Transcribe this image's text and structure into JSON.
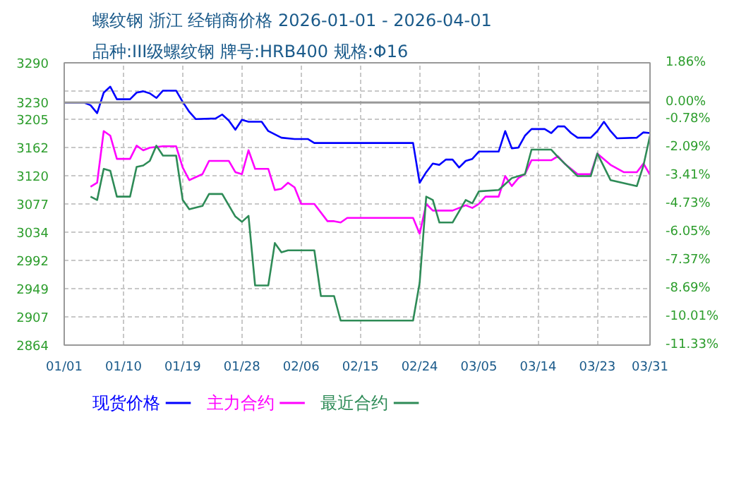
{
  "chart_data": {
    "type": "line",
    "title": "螺纹钢 浙江 经销商价格 2026-01-01 - 2026-04-01",
    "subtitle": "品种:III级螺纹钢 牌号:HRB400 规格:Φ16",
    "xlim": [
      "2026-01-01",
      "2026-03-31"
    ],
    "xticks": [
      {
        "value": "2026-01-01",
        "label": "01/01"
      },
      {
        "value": "2026-01-10",
        "label": "01/10"
      },
      {
        "value": "2026-01-19",
        "label": "01/19"
      },
      {
        "value": "2026-01-28",
        "label": "01/28"
      },
      {
        "value": "2026-02-06",
        "label": "02/06"
      },
      {
        "value": "2026-02-15",
        "label": "02/15"
      },
      {
        "value": "2026-02-24",
        "label": "02/24"
      },
      {
        "value": "2026-03-05",
        "label": "03/05"
      },
      {
        "value": "2026-03-14",
        "label": "03/14"
      },
      {
        "value": "2026-03-23",
        "label": "03/23"
      },
      {
        "value": "2026-03-31",
        "label": "03/31"
      }
    ],
    "ylim": [
      2864,
      3290
    ],
    "yticks": [
      2864,
      2907,
      2949,
      2992,
      3034,
      3077,
      3120,
      3162,
      3205,
      3230,
      {
        "value": 3247,
        "label": null
      },
      3290
    ],
    "y2lim": [
      -11.33,
      1.86
    ],
    "y2ticks": [
      {
        "value": -11.33,
        "label": "-11.33%"
      },
      {
        "value": -10.01,
        "label": "-10.01%"
      },
      {
        "value": -8.69,
        "label": "-8.69%"
      },
      {
        "value": -7.37,
        "label": "-7.37%"
      },
      {
        "value": -6.05,
        "label": "-6.05%"
      },
      {
        "value": -4.73,
        "label": "-4.73%"
      },
      {
        "value": -3.41,
        "label": "-3.41%"
      },
      {
        "value": -2.09,
        "label": "-2.09%"
      },
      {
        "value": -0.78,
        "label": "-0.78%"
      },
      {
        "value": 0,
        "label": "0.00%"
      },
      {
        "value": 1.86,
        "label": "1.86%"
      }
    ],
    "ref_lines": [
      {
        "axis": "y",
        "value": 3230,
        "color": "#999999",
        "line_style": "solid"
      }
    ],
    "grid": true,
    "legend": "bottom",
    "marker": "none",
    "line_style": "solid",
    "series": [
      {
        "name": "现货价格",
        "color": "#0000ff",
        "x": [
          "2026-01-01",
          "2026-01-04",
          "2026-01-05",
          "2026-01-06",
          "2026-01-07",
          "2026-01-08",
          "2026-01-09",
          "2026-01-11",
          "2026-01-12",
          "2026-01-13",
          "2026-01-14",
          "2026-01-15",
          "2026-01-16",
          "2026-01-18",
          "2026-01-19",
          "2026-01-20",
          "2026-01-21",
          "2026-01-24",
          "2026-01-25",
          "2026-01-26",
          "2026-01-27",
          "2026-01-28",
          "2026-01-29",
          "2026-01-31",
          "2026-02-01",
          "2026-02-03",
          "2026-02-05",
          "2026-02-07",
          "2026-02-08",
          "2026-02-23",
          "2026-02-24",
          "2026-02-25",
          "2026-02-26",
          "2026-02-27",
          "2026-02-28",
          "2026-03-01",
          "2026-03-02",
          "2026-03-03",
          "2026-03-04",
          "2026-03-05",
          "2026-03-08",
          "2026-03-09",
          "2026-03-10",
          "2026-03-11",
          "2026-03-12",
          "2026-03-13",
          "2026-03-15",
          "2026-03-16",
          "2026-03-17",
          "2026-03-18",
          "2026-03-19",
          "2026-03-20",
          "2026-03-22",
          "2026-03-23",
          "2026-03-24",
          "2026-03-25",
          "2026-03-26",
          "2026-03-29",
          "2026-03-30",
          "2026-03-31"
        ],
        "values": [
          3230,
          3230,
          3226,
          3214,
          3245,
          3254,
          3235,
          3235,
          3245,
          3247,
          3244,
          3237,
          3248,
          3248,
          3231,
          3216,
          3205,
          3206,
          3212,
          3203,
          3189,
          3204,
          3201,
          3201,
          3187,
          3177,
          3175,
          3175,
          3169,
          3169,
          3109,
          3125,
          3138,
          3136,
          3144,
          3144,
          3132,
          3142,
          3145,
          3156,
          3156,
          3187,
          3161,
          3162,
          3180,
          3190,
          3190,
          3184,
          3194,
          3194,
          3184,
          3177,
          3177,
          3187,
          3201,
          3187,
          3176,
          3177,
          3185,
          3184
        ]
      },
      {
        "name": "主力合约",
        "color": "#ff00ff",
        "x": [
          "2026-01-05",
          "2026-01-06",
          "2026-01-07",
          "2026-01-08",
          "2026-01-09",
          "2026-01-11",
          "2026-01-12",
          "2026-01-13",
          "2026-01-14",
          "2026-01-16",
          "2026-01-18",
          "2026-01-19",
          "2026-01-20",
          "2026-01-22",
          "2026-01-23",
          "2026-01-26",
          "2026-01-27",
          "2026-01-28",
          "2026-01-29",
          "2026-01-30",
          "2026-02-01",
          "2026-02-02",
          "2026-02-03",
          "2026-02-04",
          "2026-02-05",
          "2026-02-06",
          "2026-02-08",
          "2026-02-10",
          "2026-02-11",
          "2026-02-12",
          "2026-02-13",
          "2026-02-23",
          "2026-02-24",
          "2026-02-25",
          "2026-02-26",
          "2026-03-01",
          "2026-03-03",
          "2026-03-04",
          "2026-03-05",
          "2026-03-06",
          "2026-03-08",
          "2026-03-09",
          "2026-03-10",
          "2026-03-11",
          "2026-03-12",
          "2026-03-13",
          "2026-03-16",
          "2026-03-17",
          "2026-03-18",
          "2026-03-20",
          "2026-03-22",
          "2026-03-23",
          "2026-03-25",
          "2026-03-27",
          "2026-03-29",
          "2026-03-30",
          "2026-03-31"
        ],
        "values": [
          3103,
          3109,
          3187,
          3180,
          3145,
          3145,
          3165,
          3158,
          3162,
          3164,
          3164,
          3132,
          3113,
          3122,
          3142,
          3142,
          3125,
          3122,
          3158,
          3130,
          3130,
          3098,
          3100,
          3109,
          3102,
          3077,
          3077,
          3051,
          3051,
          3049,
          3056,
          3056,
          3032,
          3077,
          3067,
          3067,
          3075,
          3071,
          3077,
          3088,
          3088,
          3119,
          3104,
          3116,
          3122,
          3143,
          3143,
          3149,
          3138,
          3122,
          3122,
          3153,
          3136,
          3125,
          3125,
          3138,
          3121
        ]
      },
      {
        "name": "最近合约",
        "color": "#2e8b57",
        "x": [
          "2026-01-05",
          "2026-01-06",
          "2026-01-07",
          "2026-01-08",
          "2026-01-09",
          "2026-01-11",
          "2026-01-12",
          "2026-01-13",
          "2026-01-14",
          "2026-01-15",
          "2026-01-16",
          "2026-01-18",
          "2026-01-19",
          "2026-01-20",
          "2026-01-22",
          "2026-01-23",
          "2026-01-25",
          "2026-01-27",
          "2026-01-28",
          "2026-01-29",
          "2026-01-30",
          "2026-02-01",
          "2026-02-02",
          "2026-02-03",
          "2026-02-04",
          "2026-02-08",
          "2026-02-09",
          "2026-02-11",
          "2026-02-12",
          "2026-02-23",
          "2026-02-24",
          "2026-02-25",
          "2026-02-26",
          "2026-02-27",
          "2026-03-01",
          "2026-03-03",
          "2026-03-04",
          "2026-03-05",
          "2026-03-08",
          "2026-03-10",
          "2026-03-12",
          "2026-03-13",
          "2026-03-16",
          "2026-03-17",
          "2026-03-20",
          "2026-03-22",
          "2026-03-23",
          "2026-03-25",
          "2026-03-29",
          "2026-03-30",
          "2026-03-31"
        ],
        "values": [
          3088,
          3083,
          3130,
          3127,
          3088,
          3088,
          3133,
          3135,
          3142,
          3165,
          3150,
          3150,
          3083,
          3069,
          3074,
          3092,
          3092,
          3058,
          3050,
          3059,
          2954,
          2954,
          3018,
          3004,
          3007,
          3007,
          2938,
          2938,
          2901,
          2901,
          2958,
          3088,
          3083,
          3049,
          3049,
          3083,
          3078,
          3096,
          3098,
          3116,
          3122,
          3159,
          3159,
          3148,
          3119,
          3119,
          3153,
          3113,
          3104,
          3135,
          3180
        ]
      }
    ]
  }
}
